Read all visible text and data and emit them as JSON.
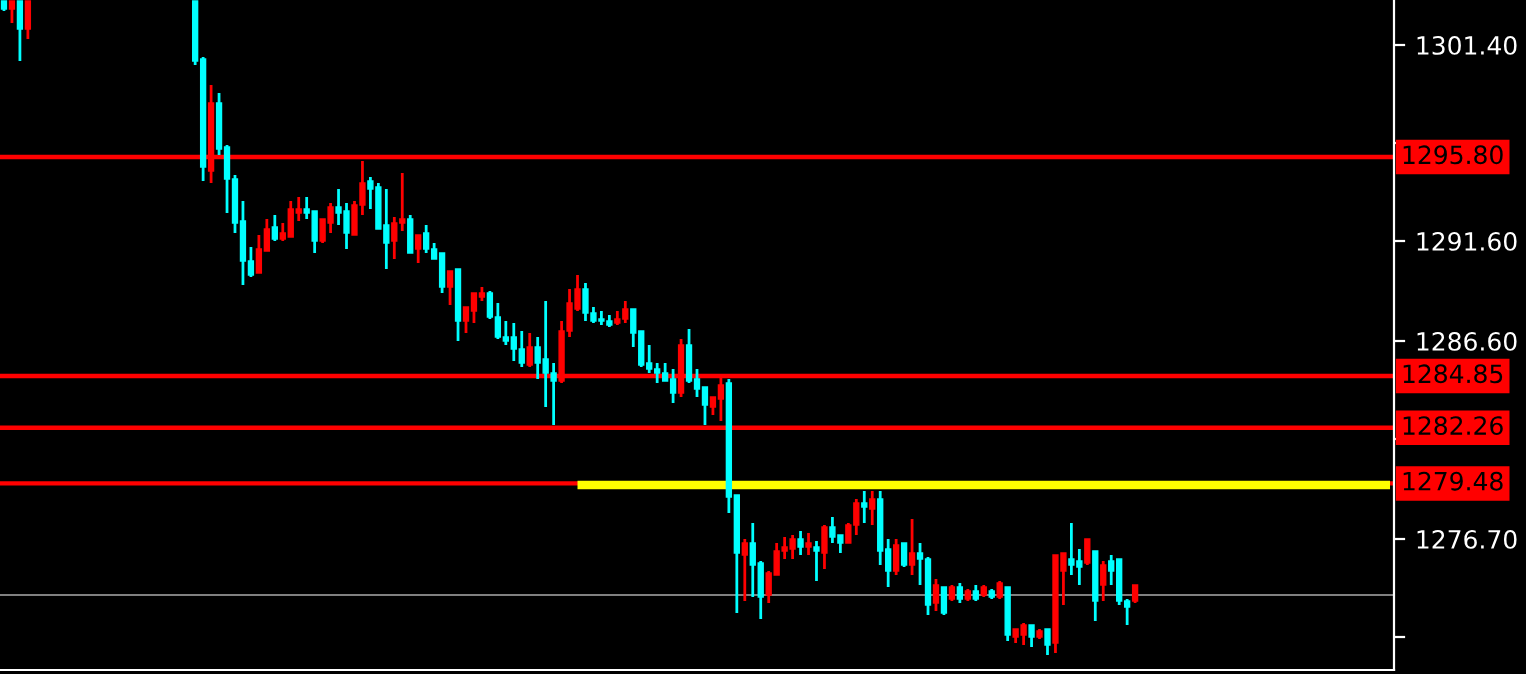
{
  "chart_data": {
    "type": "candlestick",
    "categories": [
      null,
      null,
      null,
      null,
      null,
      null,
      null,
      null,
      null,
      null,
      null,
      null,
      null,
      null,
      null,
      null,
      null,
      null,
      null,
      null,
      null,
      null,
      null,
      null,
      null,
      null,
      null,
      null,
      null,
      null,
      null,
      null,
      null,
      null,
      null,
      null,
      null,
      null,
      null,
      null,
      null,
      null,
      null,
      null,
      null,
      null,
      null,
      null,
      null,
      null,
      null,
      null,
      null,
      null,
      null,
      null,
      null,
      null,
      null,
      null,
      null,
      null,
      null,
      null,
      null,
      null,
      null,
      null,
      null,
      null,
      null,
      null,
      null,
      null,
      null,
      null,
      null,
      null,
      null,
      null,
      null,
      null,
      null,
      null,
      null,
      null,
      null,
      null,
      null,
      null,
      null,
      null,
      null,
      null,
      null,
      null,
      null,
      null,
      null,
      null,
      null,
      null,
      null,
      null,
      null,
      null,
      null,
      null,
      null,
      null,
      null,
      null,
      null,
      null,
      null,
      null,
      null,
      null,
      null,
      null,
      null,
      null,
      null,
      null,
      null,
      null,
      null,
      null,
      null,
      null,
      null,
      null,
      null,
      null,
      null,
      null,
      null,
      null,
      null,
      null,
      null,
      null,
      null,
      null,
      null,
      null,
      null,
      null,
      null,
      null,
      null,
      null,
      null,
      null,
      null,
      null,
      null,
      null,
      null,
      null,
      null,
      null,
      null,
      null,
      null,
      null,
      null,
      null,
      null,
      null,
      null,
      null,
      null,
      null,
      null
    ],
    "ohlc": [
      [
        1303.6,
        1303.6,
        1303.1,
        1303.2
      ],
      [
        1303.2,
        1303.6,
        1302.5,
        1303.6
      ],
      [
        1303.6,
        1303.6,
        1300.6,
        1302.2
      ],
      [
        1302.2,
        1303.6,
        1301.7,
        1303.6
      ],
      null,
      null,
      null,
      null,
      null,
      null,
      null,
      null,
      null,
      null,
      null,
      null,
      null,
      null,
      null,
      null,
      null,
      null,
      null,
      null,
      [
        1303.6,
        1303.6,
        1300.4,
        1300.6
      ],
      [
        1300.7,
        1300.8,
        1294.6,
        1295.3
      ],
      [
        1295.1,
        1299.4,
        1294.5,
        1298.5
      ],
      [
        1298.5,
        1299.0,
        1295.9,
        1296.2
      ],
      [
        1296.3,
        1296.4,
        1293.0,
        1294.7
      ],
      [
        1294.7,
        1294.9,
        1292.0,
        1292.5
      ],
      [
        1292.6,
        1293.6,
        1289.4,
        1290.6
      ],
      [
        1290.6,
        1291.3,
        1289.8,
        1289.9
      ],
      [
        1290.0,
        1291.9,
        1290.0,
        1291.2
      ],
      [
        1291.1,
        1292.7,
        1291.1,
        1292.2
      ],
      [
        1292.3,
        1292.9,
        1291.6,
        1291.7
      ],
      [
        1291.7,
        1292.5,
        1291.6,
        1292.0
      ],
      [
        1291.8,
        1293.6,
        1291.8,
        1293.2
      ],
      [
        1293.0,
        1293.8,
        1292.6,
        1293.2
      ],
      [
        1293.2,
        1293.8,
        1292.7,
        1293.0
      ],
      [
        1293.1,
        1293.1,
        1291.0,
        1291.6
      ],
      [
        1291.6,
        1292.7,
        1291.5,
        1292.7
      ],
      [
        1292.5,
        1293.5,
        1292.0,
        1293.3
      ],
      [
        1293.3,
        1294.2,
        1292.4,
        1293.0
      ],
      [
        1293.1,
        1293.5,
        1291.2,
        1292.0
      ],
      [
        1291.9,
        1293.6,
        1291.9,
        1293.4
      ],
      [
        1293.4,
        1295.6,
        1292.9,
        1294.5
      ],
      [
        1294.6,
        1294.8,
        1293.2,
        1294.2
      ],
      [
        1294.3,
        1294.5,
        1292.2,
        1292.2
      ],
      [
        1292.4,
        1294.2,
        1290.2,
        1291.5
      ],
      [
        1291.6,
        1292.8,
        1290.7,
        1292.5
      ],
      [
        1292.5,
        1295.0,
        1292.1,
        1292.7
      ],
      [
        1292.7,
        1292.9,
        1291.0,
        1291.0
      ],
      [
        1291.2,
        1291.9,
        1290.5,
        1291.9
      ],
      [
        1292.0,
        1292.4,
        1291.0,
        1291.2
      ],
      [
        1291.2,
        1291.5,
        1290.7,
        1290.7
      ],
      [
        1291.0,
        1291.0,
        1289.0,
        1289.3
      ],
      [
        1289.3,
        1290.1,
        1288.4,
        1290.1
      ],
      [
        1290.2,
        1290.2,
        1286.6,
        1287.6
      ],
      [
        1287.6,
        1288.3,
        1287.0,
        1288.3
      ],
      [
        1288.1,
        1289.0,
        1287.5,
        1289.0
      ],
      [
        1288.8,
        1289.3,
        1288.6,
        1289.0
      ],
      [
        1289.0,
        1289.1,
        1287.7,
        1287.8
      ],
      [
        1287.8,
        1288.5,
        1286.7,
        1286.8
      ],
      [
        1286.8,
        1287.6,
        1286.4,
        1286.6
      ],
      [
        1286.8,
        1287.5,
        1285.6,
        1286.2
      ],
      [
        1286.2,
        1287.1,
        1285.3,
        1285.5
      ],
      [
        1285.4,
        1287.0,
        1285.3,
        1286.3
      ],
      [
        1286.3,
        1286.8,
        1284.7,
        1285.5
      ],
      [
        1285.7,
        1288.6,
        1283.3,
        1285.0
      ],
      [
        1285.0,
        1285.5,
        1282.4,
        1284.6
      ],
      [
        1284.6,
        1287.6,
        1284.5,
        1287.1
      ],
      [
        1287.1,
        1289.2,
        1286.8,
        1288.5
      ],
      [
        1288.2,
        1289.9,
        1288.1,
        1289.2
      ],
      [
        1289.2,
        1289.5,
        1287.6,
        1288.0
      ],
      [
        1288.0,
        1288.3,
        1287.5,
        1287.6
      ],
      [
        1287.7,
        1288.1,
        1287.4,
        1287.6
      ],
      [
        1287.6,
        1287.9,
        1287.3,
        1287.4
      ],
      [
        1287.5,
        1288.1,
        1287.4,
        1287.7
      ],
      [
        1287.7,
        1288.6,
        1287.5,
        1288.2
      ],
      [
        1288.2,
        1288.2,
        1286.3,
        1287.0
      ],
      [
        1287.1,
        1287.1,
        1285.3,
        1285.4
      ],
      [
        1285.5,
        1286.4,
        1285.0,
        1285.2
      ],
      [
        1285.2,
        1285.5,
        1284.5,
        1285.0
      ],
      [
        1285.0,
        1285.5,
        1284.6,
        1284.6
      ],
      [
        1284.7,
        1285.2,
        1283.5,
        1284.0
      ],
      [
        1284.0,
        1286.7,
        1283.8,
        1286.4
      ],
      [
        1286.4,
        1287.2,
        1284.5,
        1284.6
      ],
      [
        1284.7,
        1285.2,
        1283.8,
        1284.2
      ],
      [
        1284.3,
        1284.3,
        1282.4,
        1283.4
      ],
      [
        1283.3,
        1283.8,
        1282.9,
        1283.8
      ],
      [
        1283.7,
        1284.8,
        1282.6,
        1284.4
      ],
      [
        1284.5,
        1284.7,
        1278.0,
        1278.8
      ],
      [
        1278.9,
        1278.9,
        1273.0,
        1276.0
      ],
      [
        1275.9,
        1276.7,
        1273.6,
        1276.5
      ],
      [
        1276.5,
        1277.5,
        1273.8,
        1275.4
      ],
      [
        1275.5,
        1275.6,
        1272.7,
        1273.8
      ],
      [
        1273.9,
        1275.1,
        1273.5,
        1275.0
      ],
      [
        1274.9,
        1276.5,
        1274.9,
        1276.1
      ],
      [
        1276.1,
        1276.8,
        1275.7,
        1276.3
      ],
      [
        1276.2,
        1276.9,
        1275.7,
        1276.7
      ],
      [
        1276.7,
        1277.1,
        1275.9,
        1276.3
      ],
      [
        1276.3,
        1277.0,
        1275.9,
        1276.5
      ],
      [
        1276.3,
        1276.6,
        1274.6,
        1276.1
      ],
      [
        1276.0,
        1277.4,
        1275.2,
        1277.3
      ],
      [
        1277.3,
        1277.8,
        1276.5,
        1276.8
      ],
      [
        1276.9,
        1276.9,
        1276.0,
        1276.5
      ],
      [
        1276.5,
        1277.5,
        1276.5,
        1277.4
      ],
      [
        1277.4,
        1278.7,
        1276.9,
        1278.5
      ],
      [
        1278.5,
        1279.1,
        1277.5,
        1278.3
      ],
      [
        1278.2,
        1279.1,
        1277.4,
        1278.7
      ],
      [
        1278.7,
        1279.1,
        1275.4,
        1276.1
      ],
      [
        1276.2,
        1276.7,
        1274.3,
        1275.1
      ],
      [
        1275.1,
        1276.7,
        1274.9,
        1276.4
      ],
      [
        1276.5,
        1276.5,
        1275.3,
        1275.4
      ],
      [
        1275.4,
        1277.7,
        1274.9,
        1276.0
      ],
      [
        1276.0,
        1276.5,
        1274.4,
        1275.7
      ],
      [
        1275.7,
        1275.8,
        1272.9,
        1273.4
      ],
      [
        1273.5,
        1274.7,
        1273.1,
        1274.4
      ],
      [
        1274.3,
        1274.3,
        1272.9,
        1273.0
      ],
      [
        1273.7,
        1274.4,
        1273.6,
        1274.3
      ],
      [
        1274.3,
        1274.5,
        1273.5,
        1273.7
      ],
      [
        1273.7,
        1274.2,
        1273.6,
        1274.1
      ],
      [
        1274.1,
        1274.4,
        1273.6,
        1273.7
      ],
      [
        1273.9,
        1274.4,
        1273.8,
        1274.3
      ],
      [
        1274.1,
        1274.2,
        1273.7,
        1273.8
      ],
      [
        1273.8,
        1274.6,
        1273.7,
        1274.5
      ],
      [
        1274.3,
        1274.3,
        1271.6,
        1271.9
      ],
      [
        1271.8,
        1272.2,
        1271.5,
        1272.2
      ],
      [
        1271.9,
        1272.5,
        1271.4,
        1272.4
      ],
      [
        1272.4,
        1272.4,
        1271.3,
        1271.8
      ],
      [
        1271.8,
        1272.2,
        1271.7,
        1272.1
      ],
      [
        1272.2,
        1272.2,
        1270.9,
        1271.4
      ],
      [
        1271.5,
        1275.9,
        1271.0,
        1275.9
      ],
      [
        1275.1,
        1276.0,
        1273.4,
        1276.0
      ],
      [
        1275.7,
        1277.5,
        1274.9,
        1275.4
      ],
      [
        1275.6,
        1276.2,
        1274.4,
        1275.3
      ],
      [
        1275.5,
        1276.7,
        1275.4,
        1276.7
      ],
      [
        1276.1,
        1276.1,
        1272.6,
        1273.6
      ],
      [
        1274.4,
        1275.6,
        1273.6,
        1275.4
      ],
      [
        1275.6,
        1275.9,
        1274.4,
        1275.1
      ],
      [
        1275.7,
        1275.7,
        1273.4,
        1273.6
      ],
      [
        1273.6,
        1273.7,
        1272.4,
        1273.3
      ],
      [
        1273.6,
        1274.4,
        1273.5,
        1274.4
      ],
      null,
      null,
      null,
      null,
      null,
      null,
      null,
      null,
      null,
      null,
      null,
      null,
      null,
      null,
      null,
      null,
      null,
      null,
      null,
      null,
      null,
      null,
      null,
      null,
      null,
      null,
      null,
      null,
      null,
      null,
      null,
      null
    ],
    "colors": [
      "#00ffff",
      "#ff0000",
      "#00ffff",
      "#ff0000",
      null,
      null,
      null,
      null,
      null,
      null,
      null,
      null,
      null,
      null,
      null,
      null,
      null,
      null,
      null,
      null,
      null,
      null,
      null,
      null,
      "#00ffff",
      "#00ffff",
      "#ff0000",
      "#00ffff",
      "#00ffff",
      "#00ffff",
      "#00ffff",
      "#00ffff",
      "#ff0000",
      "#ff0000",
      "#00ffff",
      "#ff0000",
      "#ff0000",
      "#ff0000",
      "#00ffff",
      "#00ffff",
      "#ff0000",
      "#ff0000",
      "#00ffff",
      "#00ffff",
      "#ff0000",
      "#ff0000",
      "#00ffff",
      "#00ffff",
      "#00ffff",
      "#ff0000",
      "#ff0000",
      "#00ffff",
      "#ff0000",
      "#00ffff",
      "#00ffff",
      "#00ffff",
      "#ff0000",
      "#00ffff",
      "#ff0000",
      "#ff0000",
      "#ff0000",
      "#00ffff",
      "#00ffff",
      "#00ffff",
      "#00ffff",
      "#00ffff",
      "#ff0000",
      "#00ffff",
      "#00ffff",
      "#00ffff",
      "#ff0000",
      "#ff0000",
      "#ff0000",
      "#00ffff",
      "#00ffff",
      "#00ffff",
      "#00ffff",
      "#ff0000",
      "#ff0000",
      "#00ffff",
      "#00ffff",
      "#00ffff",
      "#00ffff",
      "#00ffff",
      "#00ffff",
      "#ff0000",
      "#00ffff",
      "#00ffff",
      "#00ffff",
      "#ff0000",
      "#ff0000",
      "#00ffff",
      "#00ffff",
      "#ff0000",
      "#00ffff",
      "#00ffff",
      "#ff0000",
      "#ff0000",
      "#ff0000",
      "#ff0000",
      "#00ffff",
      "#ff0000",
      "#00ffff",
      "#ff0000",
      "#00ffff",
      "#00ffff",
      "#ff0000",
      "#ff0000",
      "#00ffff",
      "#ff0000",
      "#00ffff",
      "#00ffff",
      "#ff0000",
      "#00ffff",
      "#ff0000",
      "#00ffff",
      "#00ffff",
      "#ff0000",
      "#00ffff",
      "#ff0000",
      "#00ffff",
      "#ff0000",
      "#00ffff",
      "#ff0000",
      "#00ffff",
      "#ff0000",
      "#00ffff",
      "#ff0000",
      "#ff0000",
      "#00ffff",
      "#ff0000",
      "#00ffff",
      "#ff0000",
      "#ff0000",
      "#00ffff",
      "#00ffff",
      "#ff0000",
      "#00ffff",
      "#ff0000",
      "#00ffff",
      "#00ffff",
      "#00ffff",
      "#ff0000",
      null,
      null,
      null,
      null,
      null,
      null,
      null,
      null,
      null,
      null,
      null,
      null,
      null,
      null,
      null,
      null,
      null,
      null,
      null,
      null,
      null,
      null,
      null,
      null,
      null,
      null,
      null,
      null,
      null,
      null,
      null,
      null
    ],
    "ylim": [
      1270.15,
      1303.65
    ],
    "yticks": [
      {
        "value": 1301.4,
        "label": "1301.40"
      },
      {
        "value": 1296.5,
        "label": null
      },
      {
        "value": 1291.6,
        "label": "1291.60"
      },
      {
        "value": 1286.6,
        "label": "1286.60"
      },
      {
        "value": 1281.7,
        "label": null
      },
      {
        "value": 1276.7,
        "label": "1276.70"
      },
      {
        "value": 1271.8,
        "label": null
      }
    ],
    "ref_lines": [
      {
        "axis": "y",
        "value": 1295.8,
        "label": "1295.80",
        "color": "#ff0000"
      },
      {
        "axis": "y",
        "value": 1284.85,
        "label": "1284.85",
        "color": "#ff0000"
      },
      {
        "axis": "y",
        "value": 1282.26,
        "label": "1282.26",
        "color": "#ff0000"
      },
      {
        "axis": "y",
        "value": 1279.48,
        "label": "1279.48",
        "color": "#ff0000"
      },
      {
        "axis": "y",
        "value": 1273.9,
        "label": null,
        "color": "#808080"
      }
    ],
    "series": [
      {
        "type": "line",
        "color": "#ffff00",
        "values": [
          null,
          null,
          null,
          null,
          null,
          null,
          null,
          null,
          null,
          null,
          null,
          null,
          null,
          null,
          null,
          null,
          null,
          null,
          null,
          null,
          null,
          null,
          null,
          null,
          null,
          null,
          null,
          null,
          null,
          null,
          null,
          null,
          null,
          null,
          null,
          null,
          null,
          null,
          null,
          null,
          null,
          null,
          null,
          null,
          null,
          null,
          null,
          null,
          null,
          null,
          null,
          null,
          null,
          null,
          null,
          null,
          null,
          null,
          null,
          null,
          null,
          null,
          null,
          null,
          null,
          null,
          null,
          null,
          null,
          null,
          null,
          null,
          1279.4,
          1279.4,
          1279.4,
          1279.4,
          1279.4,
          1279.4,
          1279.4,
          1279.4,
          1279.4,
          1279.4,
          1279.4,
          1279.4,
          1279.4,
          1279.4,
          1279.4,
          1279.4,
          1279.4,
          1279.4,
          1279.4,
          1279.4,
          1279.4,
          1279.4,
          1279.4,
          1279.4,
          1279.4,
          1279.4,
          1279.4,
          1279.4,
          1279.4,
          1279.4,
          1279.4,
          1279.4,
          1279.4,
          1279.4,
          1279.4,
          1279.4,
          1279.4,
          1279.4,
          1279.4,
          1279.4,
          1279.4,
          1279.4,
          1279.4,
          1279.4,
          1279.4,
          1279.4,
          1279.4,
          1279.4,
          1279.4,
          1279.4,
          1279.4,
          1279.4,
          1279.4,
          1279.4,
          1279.4,
          1279.4,
          1279.4,
          1279.4,
          1279.4,
          1279.4,
          1279.4,
          1279.4,
          1279.4,
          1279.4,
          1279.4,
          1279.4,
          1279.4,
          1279.4,
          1279.4,
          1279.4,
          1279.4,
          1279.4,
          1279.4,
          1279.4,
          1279.4,
          1279.4,
          1279.4,
          1279.4,
          1279.4,
          1279.4,
          1279.4,
          1279.4,
          1279.4,
          1279.4,
          1279.4,
          1279.4,
          1279.4,
          1279.4,
          1279.4,
          1279.4,
          1279.4,
          1279.4,
          1279.4,
          1279.4,
          1279.4,
          1279.4,
          1279.4,
          1279.4,
          1279.4,
          1279.4,
          1279.4,
          1279.4,
          1279.4
        ]
      }
    ],
    "grid": false,
    "legend": false
  }
}
